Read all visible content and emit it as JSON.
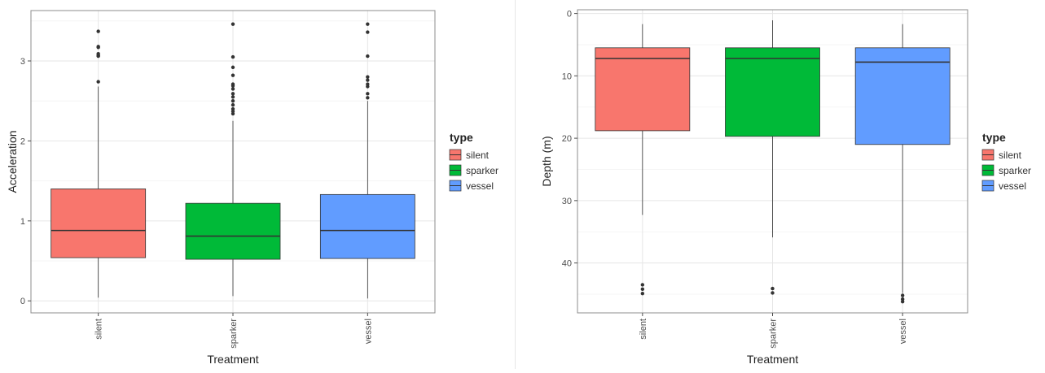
{
  "chart_data": [
    {
      "type": "box",
      "xlabel": "Treatment",
      "ylabel": "Acceleration",
      "ylim": [
        -0.15,
        3.63
      ],
      "yticks": [
        0,
        1,
        2,
        3
      ],
      "grid": true,
      "legend_position": "right",
      "legend_title": "type",
      "categories": [
        "silent",
        "sparker",
        "vessel"
      ],
      "boxes": [
        {
          "name": "silent",
          "fill": "#F8766D",
          "whisker_low": 0.04,
          "q1": 0.54,
          "median": 0.88,
          "q3": 1.4,
          "whisker_high": 2.68,
          "outliers": [
            2.74,
            3.06,
            3.07,
            3.09,
            3.17,
            3.18,
            3.37
          ]
        },
        {
          "name": "sparker",
          "fill": "#00BA38",
          "whisker_low": 0.06,
          "q1": 0.52,
          "median": 0.81,
          "q3": 1.22,
          "whisker_high": 2.25,
          "outliers": [
            2.34,
            2.37,
            2.4,
            2.45,
            2.5,
            2.55,
            2.59,
            2.65,
            2.69,
            2.71,
            2.82,
            2.92,
            3.05,
            3.46
          ]
        },
        {
          "name": "vessel",
          "fill": "#619CFF",
          "whisker_low": 0.03,
          "q1": 0.53,
          "median": 0.88,
          "q3": 1.33,
          "whisker_high": 2.5,
          "outliers": [
            2.54,
            2.59,
            2.68,
            2.71,
            2.76,
            2.8,
            3.06,
            3.36,
            3.46
          ]
        }
      ]
    },
    {
      "type": "box",
      "xlabel": "Treatment",
      "ylabel": "Depth (m)",
      "ylim": [
        -0.6,
        48.0
      ],
      "y_reversed": true,
      "yticks": [
        0,
        10,
        20,
        30,
        40
      ],
      "grid": true,
      "legend_position": "right",
      "legend_title": "type",
      "categories": [
        "silent",
        "sparker",
        "vessel"
      ],
      "boxes": [
        {
          "name": "silent",
          "fill": "#F8766D",
          "whisker_low": 1.7,
          "q1": 5.5,
          "median": 7.2,
          "q3": 18.8,
          "whisker_high": 32.3,
          "outliers": [
            43.5,
            44.2,
            44.9
          ]
        },
        {
          "name": "sparker",
          "fill": "#00BA38",
          "whisker_low": 1.1,
          "q1": 5.5,
          "median": 7.2,
          "q3": 19.7,
          "whisker_high": 35.9,
          "outliers": [
            44.1,
            44.8
          ]
        },
        {
          "name": "vessel",
          "fill": "#619CFF",
          "whisker_low": 1.7,
          "q1": 5.5,
          "median": 7.8,
          "q3": 21.0,
          "whisker_high": 44.8,
          "outliers": [
            45.2,
            45.8,
            46.2
          ]
        }
      ]
    }
  ]
}
